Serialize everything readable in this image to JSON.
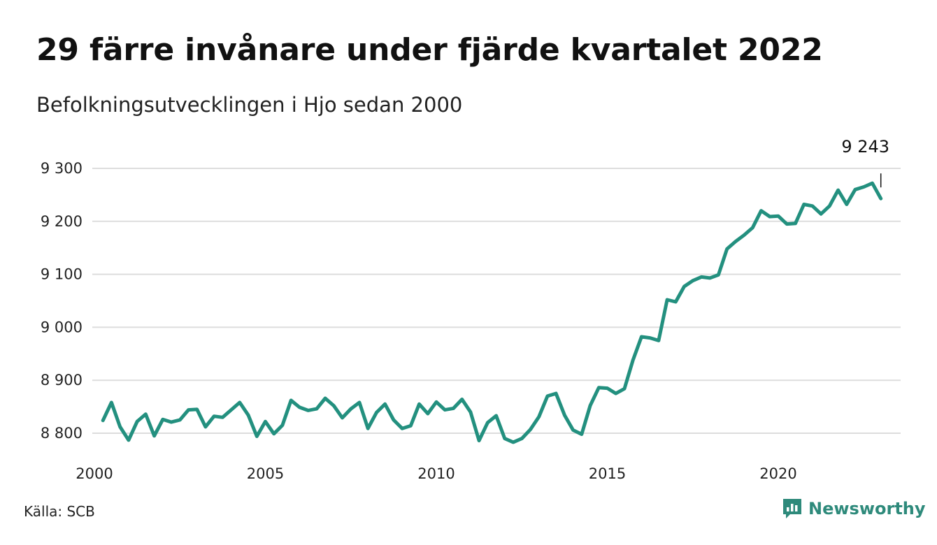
{
  "header": {
    "title": "29 färre invånare under fjärde kvartalet 2022",
    "subtitle": "Befolkningsutvecklingen i Hjo sedan 2000"
  },
  "footer": {
    "source": "Källa: SCB",
    "brand": "Newsworthy"
  },
  "colors": {
    "line": "#23907f",
    "grid": "#dddddd",
    "brand": "#2e8a7b"
  },
  "chart_data": {
    "type": "line",
    "x_unit": "year (quarterly points)",
    "ylim": [
      8780,
      9300
    ],
    "yticks": [
      8800,
      8900,
      9000,
      9100,
      9200,
      9300
    ],
    "ytick_labels": [
      "8 800",
      "8 900",
      "9 000",
      "9 100",
      "9 200",
      "9 300"
    ],
    "xlim": [
      2000,
      2023.25
    ],
    "xticks": [
      2000,
      2005,
      2010,
      2015,
      2020
    ],
    "xtick_labels": [
      "2000",
      "2005",
      "2010",
      "2015",
      "2020"
    ],
    "grid": true,
    "end_label": "9 243",
    "series": [
      {
        "x": [
          2000.25,
          2000.5,
          2000.75,
          2001,
          2001.25,
          2001.5,
          2001.75,
          2002,
          2002.25,
          2002.5,
          2002.75,
          2003,
          2003.25,
          2003.5,
          2003.75,
          2004,
          2004.25,
          2004.5,
          2004.75,
          2005,
          2005.25,
          2005.5,
          2005.75,
          2006,
          2006.25,
          2006.5,
          2006.75,
          2007,
          2007.25,
          2007.5,
          2007.75,
          2008,
          2008.25,
          2008.5,
          2008.75,
          2009,
          2009.25,
          2009.5,
          2009.75,
          2010,
          2010.25,
          2010.5,
          2010.75,
          2011,
          2011.25,
          2011.5,
          2011.75,
          2012,
          2012.25,
          2012.5,
          2012.75,
          2013,
          2013.25,
          2013.5,
          2013.75,
          2014,
          2014.25,
          2014.5,
          2014.75,
          2015,
          2015.25,
          2015.5,
          2015.75,
          2016,
          2016.25,
          2016.5,
          2016.75,
          2017,
          2017.25,
          2017.5,
          2017.75,
          2018,
          2018.25,
          2018.5,
          2018.75,
          2019,
          2019.25,
          2019.5,
          2019.75,
          2020,
          2020.25,
          2020.5,
          2020.75,
          2021,
          2021.25,
          2021.5,
          2021.75,
          2022,
          2022.25,
          2022.5,
          2022.75,
          2023
        ],
        "y": [
          8824,
          8858,
          8812,
          8787,
          8822,
          8836,
          8795,
          8826,
          8821,
          8825,
          8844,
          8845,
          8812,
          8832,
          8830,
          8844,
          8858,
          8834,
          8794,
          8822,
          8799,
          8815,
          8862,
          8849,
          8843,
          8846,
          8866,
          8852,
          8829,
          8846,
          8858,
          8809,
          8839,
          8855,
          8825,
          8809,
          8814,
          8855,
          8837,
          8859,
          8844,
          8847,
          8864,
          8840,
          8786,
          8820,
          8833,
          8790,
          8783,
          8790,
          8807,
          8831,
          8870,
          8875,
          8834,
          8806,
          8798,
          8852,
          8886,
          8885,
          8875,
          8884,
          8938,
          8982,
          8980,
          8975,
          9052,
          9048,
          9077,
          9088,
          9095,
          9093,
          9099,
          9148,
          9162,
          9174,
          9188,
          9220,
          9209,
          9210,
          9195,
          9196,
          9232,
          9229,
          9214,
          9229,
          9259,
          9232,
          9260,
          9265,
          9272,
          9243
        ]
      }
    ]
  }
}
